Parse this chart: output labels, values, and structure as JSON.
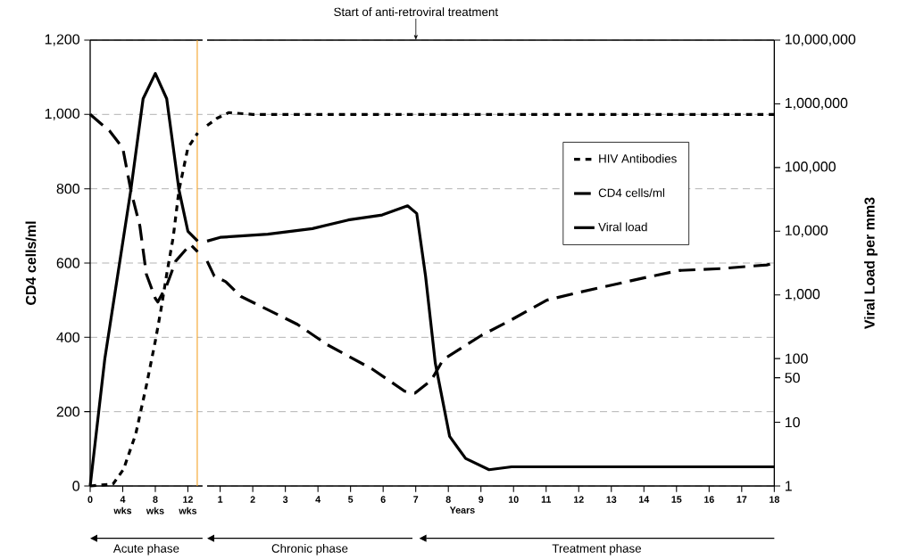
{
  "chart_data": [
    {
      "type": "line",
      "ylabel": "CD4 cells/ml",
      "xlim": [
        0,
        13.8
      ],
      "xticks": [
        0,
        {
          "value": 4,
          "label": "4 wks"
        },
        {
          "value": 8,
          "label": "8 wks"
        },
        {
          "value": 12,
          "label": "12 wks"
        }
      ],
      "ylim": [
        0,
        1200
      ],
      "yticks": [
        0,
        200,
        400,
        600,
        800,
        {
          "value": 1000,
          "label": "1,000"
        },
        {
          "value": 1200,
          "label": "1,200"
        }
      ],
      "y2lim": [
        1,
        10000000
      ],
      "log": "y2",
      "grid": "y",
      "series": [
        {
          "color": "#000000",
          "line_style": "dotted",
          "x": [
            0,
            2.8,
            4.1,
            5.6,
            6.9,
            8,
            8.7,
            9.4,
            10.2,
            10.9,
            12,
            13.2
          ],
          "values": [
            0,
            5,
            45,
            140,
            270,
            390,
            475,
            570,
            670,
            795,
            910,
            950
          ]
        },
        {
          "color": "#000000",
          "line_style": "dashed",
          "x": [
            0,
            2.4,
            4,
            5,
            6.1,
            6.9,
            8,
            8.3,
            9.4,
            10.5,
            12.3,
            13.2
          ],
          "values": [
            1000,
            955,
            910,
            795,
            700,
            570,
            505,
            495,
            540,
            605,
            650,
            630
          ]
        },
        {
          "color": "#000000",
          "line_style": "solid",
          "axis": "y2",
          "x": [
            0,
            1.8,
            5,
            6.5,
            8,
            9.4,
            10.9,
            12,
            13.2
          ],
          "values": [
            1,
            100,
            45000,
            1200000,
            3000000,
            1200000,
            45000,
            10000,
            7000
          ]
        }
      ],
      "ref_lines": [
        {
          "axis": "x",
          "value": 13.15,
          "color": "#f5a020"
        }
      ],
      "annotations": [
        "Acute phase"
      ]
    },
    {
      "type": "line",
      "xlabel": "Years",
      "y2label": "Viral Load per mm3",
      "xlim": [
        0.6,
        18
      ],
      "xticks": [
        1,
        2,
        3,
        4,
        5,
        6,
        7,
        8,
        9,
        10,
        11,
        12,
        13,
        14,
        15,
        16,
        17,
        18
      ],
      "ylim": [
        0,
        1200
      ],
      "y2lim": [
        1,
        10000000
      ],
      "y2ticks": [
        1,
        10,
        50,
        100,
        {
          "value": 1000,
          "label": "1,000"
        },
        {
          "value": 10000,
          "label": "10,000"
        },
        {
          "value": 100000,
          "label": "100,000"
        },
        {
          "value": 1000000,
          "label": "1,000,000"
        },
        {
          "value": 10000000,
          "label": "10,000,000"
        }
      ],
      "log": "y2",
      "grid": "y",
      "legend": "right",
      "series": [
        {
          "name": "HIV Antibodies",
          "color": "#000000",
          "line_style": "dotted",
          "x": [
            0.6,
            0.91,
            1.27,
            2,
            18
          ],
          "values": [
            970,
            990,
            1005,
            1000,
            1000
          ]
        },
        {
          "name": "CD4 cells/ml",
          "color": "#000000",
          "line_style": "dashed",
          "x": [
            0.6,
            0.82,
            1.17,
            1.64,
            3.37,
            4.29,
            5.66,
            6.66,
            6.98,
            7.48,
            7.84,
            9.01,
            9.99,
            11.02,
            11.95,
            14,
            15.08,
            16.35,
            17.77,
            18
          ],
          "values": [
            605,
            565,
            550,
            510,
            435,
            380,
            315,
            255,
            250,
            285,
            340,
            405,
            450,
            500,
            520,
            560,
            580,
            585,
            595,
            600
          ]
        },
        {
          "name": "Viral load",
          "color": "#000000",
          "line_style": "solid",
          "axis": "y2",
          "x": [
            0.6,
            1,
            2.46,
            3.83,
            4.93,
            5.97,
            6.75,
            7.03,
            7.3,
            7.6,
            8.04,
            8.53,
            9.25,
            9.94,
            18
          ],
          "values": [
            7000,
            8000,
            9000,
            11000,
            15000,
            18000,
            25000,
            19000,
            2000,
            85,
            6,
            2.7,
            1.8,
            2,
            2
          ]
        }
      ],
      "annotations": [
        "Start of anti-retroviral treatment",
        "Chronic phase",
        "Treatment phase"
      ]
    }
  ]
}
